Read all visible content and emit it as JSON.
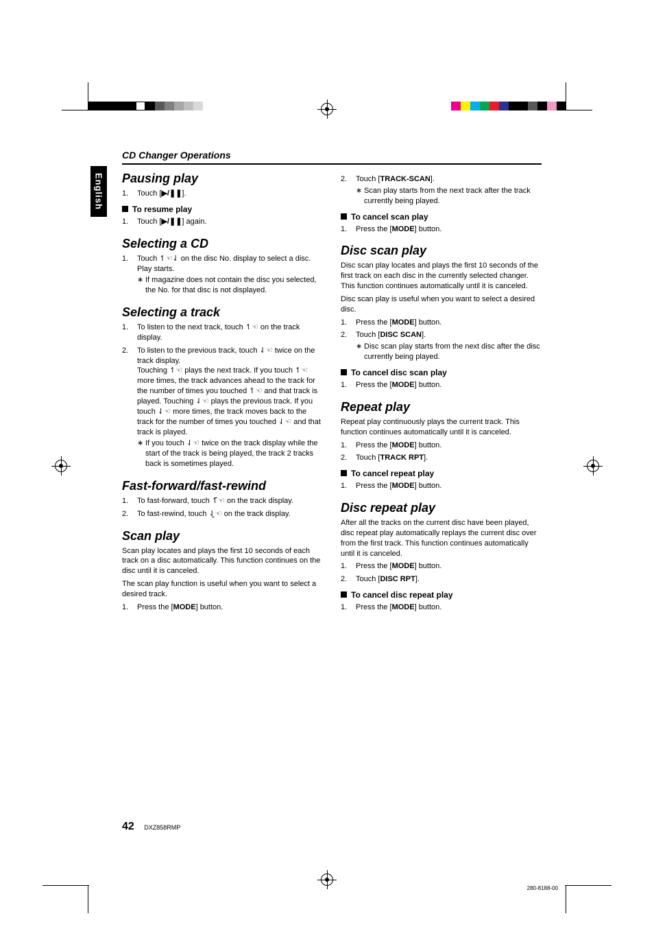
{
  "register_colors_bw": [
    "#000000",
    "#000000",
    "#000000",
    "#000000",
    "#000000",
    "#ffffff",
    "#000000",
    "#595959",
    "#808080",
    "#a6a6a6",
    "#bfbfbf",
    "#d9d9d9"
  ],
  "register_colors_c": [
    "#ed008c",
    "#fff200",
    "#00aeef",
    "#00a651",
    "#ec1c24",
    "#2e3192",
    "#000000",
    "#000000",
    "#595959",
    "#000000",
    "#f49ac1",
    "#000000"
  ],
  "lang_tab": "English",
  "header": "CD Changer Operations",
  "page_number": "42",
  "model": "DXZ858RMP",
  "docnum": "280-8188-00",
  "icons": {
    "play_pause": "▶/❚❚",
    "up_arrow": "↿",
    "down_arrow": "⇃",
    "finger": "☜",
    "up_bar": "↿̄",
    "down_bar": "⇃̱"
  },
  "left": {
    "pausing": {
      "title": "Pausing play",
      "step1_a": "Touch [",
      "step1_b": "].",
      "resume_title": "To resume play",
      "resume_step1_a": "Touch [",
      "resume_step1_b": "] again."
    },
    "selecting_cd": {
      "title": "Selecting a CD",
      "step1_a": "Touch ",
      "step1_b": " on the disc No. display to select a disc.",
      "step1_c": "Play starts.",
      "bullet": "If magazine does not contain the disc you selected, the No. for that disc is not displayed."
    },
    "selecting_track": {
      "title": "Selecting a track",
      "step1_a": "To listen to the next track, touch ",
      "step1_b": " on the track display.",
      "step2_a": "To listen to the previous track, touch ",
      "step2_b": " twice on the track display.",
      "step2_c": "Touching ",
      "step2_d": " plays the next track. If you touch ",
      "step2_e": " more times, the track advances ahead to the track for the number of times you touched ",
      "step2_f": " and that track is played. Touching ",
      "step2_g": " plays the previous track. If you touch ",
      "step2_h": " more times, the track moves back to the track for the number of times you touched ",
      "step2_i": " and that track is played.",
      "bullet_a": "If you touch ",
      "bullet_b": " twice on the track display while the start of the track is being played, the track 2 tracks back is sometimes played."
    },
    "ffw": {
      "title": "Fast-forward/fast-rewind",
      "step1_a": "To fast-forward, touch ",
      "step1_b": " on the track display.",
      "step2_a": "To fast-rewind, touch ",
      "step2_b": " on the track display."
    },
    "scan": {
      "title": "Scan play",
      "p1": "Scan play locates and plays the first 10 seconds of each track on a disc automatically. This function continues on the disc until it is canceled.",
      "p2": "The scan play function is useful when you want to select a desired track.",
      "step1_a": "Press the [",
      "step1_mode": "MODE",
      "step1_b": "] button."
    }
  },
  "right": {
    "scan_cont": {
      "step2_a": "Touch [",
      "step2_label": "TRACK-SCAN",
      "step2_b": "].",
      "bullet": "Scan play starts from the next track after the track currently being played.",
      "cancel_title": "To cancel scan play",
      "cancel_step1_a": "Press the [",
      "cancel_mode": "MODE",
      "cancel_step1_b": "] button."
    },
    "disc_scan": {
      "title": "Disc scan play",
      "p1": "Disc scan play locates and plays the first 10 seconds of the first track on each disc in the currently selected changer. This function continues automatically until it is canceled.",
      "p2": "Disc scan play is useful when you want to select a desired disc.",
      "step1_a": "Press the [",
      "step1_mode": "MODE",
      "step1_b": "] button.",
      "step2_a": "Touch [",
      "step2_label": "DISC SCAN",
      "step2_b": "].",
      "bullet": "Disc scan play starts from the next disc after the disc currently being played.",
      "cancel_title": "To cancel disc scan play",
      "cancel_step1_a": "Press the [",
      "cancel_mode": "MODE",
      "cancel_step1_b": "] button."
    },
    "repeat": {
      "title": "Repeat play",
      "p": "Repeat play continuously plays the current track. This function continues automatically until it is canceled.",
      "step1_a": "Press the [",
      "step1_mode": "MODE",
      "step1_b": "] button.",
      "step2_a": "Touch [",
      "step2_label": "TRACK RPT",
      "step2_b": "].",
      "cancel_title": "To cancel repeat play",
      "cancel_step1_a": "Press the [",
      "cancel_mode": "MODE",
      "cancel_step1_b": "] button."
    },
    "disc_repeat": {
      "title": "Disc repeat play",
      "p": "After all the tracks on the current disc have been played, disc repeat play automatically replays the current disc over from the first track. This function continues automatically until it is canceled.",
      "step1_a": "Press the [",
      "step1_mode": "MODE",
      "step1_b": "] button.",
      "step2_a": "Touch [",
      "step2_label": "DISC RPT",
      "step2_b": "].",
      "cancel_title": "To cancel disc repeat play",
      "cancel_step1_a": "Press the [",
      "cancel_mode": "MODE",
      "cancel_step1_b": "] button."
    }
  }
}
